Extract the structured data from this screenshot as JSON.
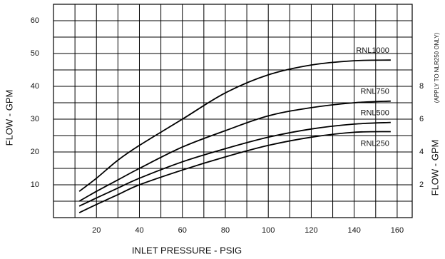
{
  "chart_data": {
    "type": "line",
    "x_label": "INLET PRESSURE - PSIG",
    "y_label": "FLOW - GPM",
    "y2_label": "FLOW - GPM",
    "y2_note": "(APPLY TO NLR250 ONLY)",
    "x": [
      12,
      20,
      30,
      40,
      60,
      80,
      100,
      120,
      140,
      157
    ],
    "series": [
      {
        "name": "RNL1000",
        "color": "#000000",
        "values": [
          8,
          12,
          17.5,
          22,
          30,
          38,
          43.5,
          46.5,
          47.8,
          48
        ]
      },
      {
        "name": "RNL750",
        "color": "#000000",
        "values": [
          5,
          8,
          11.5,
          15,
          21.5,
          26.5,
          31,
          33.5,
          35,
          35.5
        ]
      },
      {
        "name": "RNL500",
        "color": "#000000",
        "values": [
          3.5,
          6,
          9,
          12,
          17,
          21,
          24.5,
          27,
          28.5,
          29
        ]
      },
      {
        "name": "RNL250",
        "color": "#000000",
        "values": [
          1.5,
          4,
          7,
          10,
          14.5,
          18.5,
          22,
          24.5,
          26,
          26.2
        ]
      }
    ],
    "xlim": [
      0,
      167
    ],
    "xticks": [
      20,
      40,
      60,
      80,
      100,
      120,
      140,
      160
    ],
    "ylim": [
      0,
      65
    ],
    "yticks": [
      10,
      20,
      30,
      40,
      50,
      60
    ],
    "y2lim": [
      0,
      13
    ],
    "y2ticks": [
      2,
      4,
      6,
      8
    ],
    "xgrid": [
      10,
      20,
      30,
      40,
      50,
      60,
      70,
      80,
      90,
      100,
      110,
      120,
      130,
      140,
      150,
      160
    ],
    "ygrid": [
      5,
      10,
      15,
      20,
      25,
      30,
      35,
      40,
      45,
      50,
      55,
      60
    ],
    "grid": true
  }
}
